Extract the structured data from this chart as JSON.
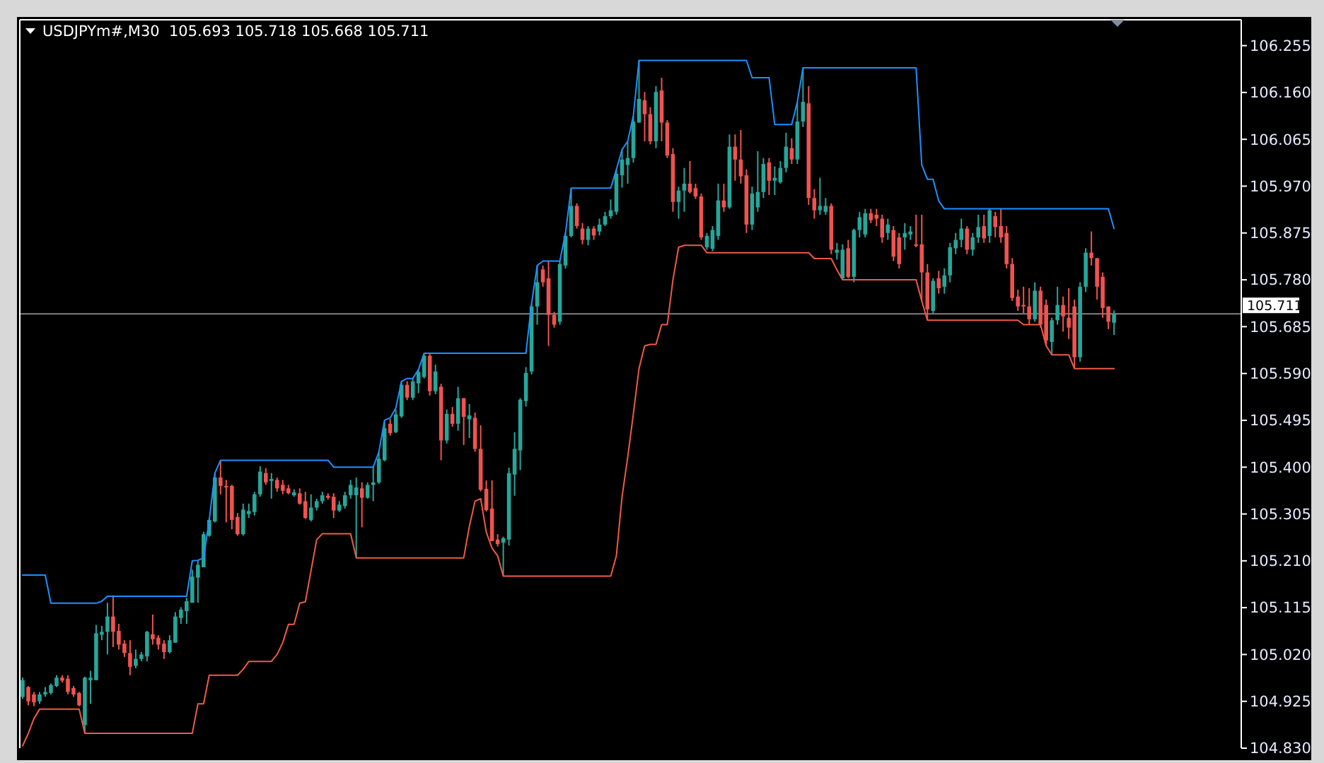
{
  "chart_data": {
    "type": "candlestick",
    "title": "USDJPYm#,M30  105.693 105.718 105.668 105.711",
    "categories": [
      null,
      null,
      null,
      null,
      null,
      null,
      null,
      null,
      null,
      null,
      null,
      null,
      null,
      null,
      null,
      null,
      null,
      null,
      null,
      null,
      null,
      null,
      null,
      null,
      null,
      null,
      null,
      null,
      null,
      null,
      null,
      null,
      null,
      null,
      null,
      null,
      null,
      null,
      null,
      null,
      null,
      null,
      null,
      null,
      null,
      null,
      null,
      null,
      null,
      null,
      null,
      null,
      null,
      null,
      null,
      null,
      null,
      null,
      null,
      null,
      null,
      null,
      null,
      null,
      null,
      null,
      null,
      null,
      null,
      null,
      null,
      null,
      null,
      null,
      null,
      null,
      null,
      null,
      null,
      null,
      null,
      null,
      null,
      null,
      null,
      null,
      null,
      null,
      null,
      null,
      null,
      null,
      null,
      null,
      null,
      null,
      null,
      null,
      null,
      null,
      null,
      null,
      null,
      null,
      null,
      null,
      null,
      null,
      null,
      null,
      null,
      null,
      null,
      null,
      null,
      null,
      null,
      null,
      null,
      null,
      null,
      null,
      null,
      null,
      null,
      null,
      null,
      null,
      null,
      null,
      null,
      null,
      null,
      null,
      null,
      null,
      null,
      null,
      null,
      null,
      null,
      null,
      null,
      null,
      null,
      null,
      null,
      null,
      null,
      null,
      null,
      null,
      null,
      null,
      null,
      null,
      null,
      null,
      null,
      null,
      null,
      null,
      null,
      null,
      null,
      null,
      null,
      null,
      null,
      null,
      null,
      null,
      null,
      null,
      null,
      null,
      null,
      null,
      null,
      null,
      null,
      null,
      null,
      null,
      null,
      null,
      null,
      null,
      null,
      null,
      null,
      null,
      null,
      null,
      null,
      null,
      null,
      null,
      null,
      null,
      null,
      null,
      null,
      null,
      null,
      null,
      null,
      null,
      null,
      null,
      null,
      null,
      null,
      null,
      null,
      null
    ],
    "ylim": [
      104.83,
      106.305
    ],
    "yticks": [
      106.255,
      {
        "value": 106.16,
        "label": "106.160"
      },
      106.065,
      {
        "value": 105.97,
        "label": "105.970"
      },
      105.875,
      {
        "value": 105.78,
        "label": "105.780"
      },
      105.685,
      {
        "value": 105.59,
        "label": "105.590"
      },
      105.495,
      {
        "value": 105.4,
        "label": "105.400"
      },
      105.305,
      {
        "value": 105.21,
        "label": "105.210"
      },
      105.115,
      {
        "value": 105.02,
        "label": "105.020"
      },
      104.925,
      {
        "value": 104.83,
        "label": "104.830"
      }
    ],
    "tick_labels": "y",
    "ref_lines": [
      {
        "axis": "y",
        "value": 105.711,
        "label": "105.711",
        "color": "#808080"
      }
    ],
    "series": [
      {
        "ohlc": [
          [
            104.934,
            104.973,
            104.93,
            104.968
          ],
          [
            104.954,
            104.956,
            104.917,
            104.925
          ],
          [
            104.939,
            104.944,
            104.915,
            104.923
          ],
          [
            104.925,
            104.944,
            104.92,
            104.939
          ],
          [
            104.939,
            104.954,
            104.934,
            104.944
          ],
          [
            104.942,
            104.961,
            104.939,
            104.958
          ],
          [
            104.956,
            104.978,
            104.954,
            104.973
          ],
          [
            104.973,
            104.978,
            104.963,
            104.967
          ],
          [
            104.971,
            104.978,
            104.939,
            104.944
          ],
          [
            104.952,
            104.956,
            104.934,
            104.939
          ],
          [
            104.942,
            104.944,
            104.915,
            104.917
          ],
          [
            104.877,
            104.975,
            104.86,
            104.973
          ],
          [
            104.968,
            104.987,
            104.92,
            104.973
          ],
          [
            104.968,
            105.08,
            104.968,
            105.063
          ],
          [
            105.06,
            105.078,
            105.049,
            105.066
          ],
          [
            105.066,
            105.125,
            105.02,
            105.097
          ],
          [
            105.097,
            105.14,
            105.035,
            105.066
          ],
          [
            105.068,
            105.082,
            105.03,
            105.04
          ],
          [
            105.042,
            105.049,
            105.015,
            105.023
          ],
          [
            105.023,
            105.049,
            104.978,
            104.995
          ],
          [
            104.997,
            105.03,
            104.992,
            105.011
          ],
          [
            105.011,
            105.025,
            105.006,
            105.02
          ],
          [
            105.016,
            105.068,
            105.006,
            105.066
          ],
          [
            105.061,
            105.101,
            105.04,
            105.051
          ],
          [
            105.054,
            105.059,
            105.03,
            105.04
          ],
          [
            105.042,
            105.049,
            105.011,
            105.025
          ],
          [
            105.025,
            105.059,
            105.022,
            105.049
          ],
          [
            105.044,
            105.106,
            105.044,
            105.097
          ],
          [
            105.094,
            105.116,
            105.082,
            105.111
          ],
          [
            105.108,
            105.135,
            105.082,
            105.128
          ],
          [
            105.125,
            105.192,
            105.125,
            105.178
          ],
          [
            105.176,
            105.211,
            105.125,
            105.202
          ],
          [
            105.197,
            105.269,
            105.197,
            105.264
          ],
          [
            105.261,
            105.297,
            105.259,
            105.293
          ],
          [
            105.29,
            105.388,
            105.288,
            105.379
          ],
          [
            105.379,
            105.414,
            105.345,
            105.362
          ],
          [
            105.362,
            105.374,
            105.288,
            105.359
          ],
          [
            105.362,
            105.364,
            105.274,
            105.293
          ],
          [
            105.299,
            105.307,
            105.261,
            105.264
          ],
          [
            105.264,
            105.326,
            105.261,
            105.314
          ],
          [
            105.305,
            105.326,
            105.297,
            105.311
          ],
          [
            105.309,
            105.35,
            105.302,
            105.345
          ],
          [
            105.345,
            105.402,
            105.34,
            105.391
          ],
          [
            105.388,
            105.398,
            105.364,
            105.369
          ],
          [
            105.372,
            105.388,
            105.336,
            105.376
          ],
          [
            105.374,
            105.379,
            105.35,
            105.357
          ],
          [
            105.364,
            105.374,
            105.345,
            105.352
          ],
          [
            105.357,
            105.364,
            105.345,
            105.347
          ],
          [
            105.343,
            105.355,
            105.34,
            105.349
          ],
          [
            105.347,
            105.357,
            105.324,
            105.326
          ],
          [
            105.331,
            105.35,
            105.295,
            105.297
          ],
          [
            105.293,
            105.345,
            105.29,
            105.318
          ],
          [
            105.318,
            105.336,
            105.312,
            105.331
          ],
          [
            105.331,
            105.35,
            105.326,
            105.343
          ],
          [
            105.342,
            105.347,
            105.334,
            105.338
          ],
          [
            105.34,
            105.347,
            105.297,
            105.312
          ],
          [
            105.312,
            105.331,
            105.309,
            105.324
          ],
          [
            105.321,
            105.35,
            105.316,
            105.343
          ],
          [
            105.343,
            105.374,
            105.336,
            105.364
          ],
          [
            105.343,
            105.379,
            105.216,
            105.359
          ],
          [
            105.357,
            105.369,
            105.278,
            105.338
          ],
          [
            105.338,
            105.369,
            105.336,
            105.364
          ],
          [
            105.364,
            105.402,
            105.331,
            105.369
          ],
          [
            105.369,
            105.431,
            105.366,
            105.417
          ],
          [
            105.414,
            105.493,
            105.412,
            105.479
          ],
          [
            105.488,
            105.498,
            105.464,
            105.469
          ],
          [
            105.471,
            105.517,
            105.469,
            105.507
          ],
          [
            105.503,
            105.574,
            105.5,
            105.567
          ],
          [
            105.567,
            105.574,
            105.536,
            105.541
          ],
          [
            105.541,
            105.579,
            105.536,
            105.574
          ],
          [
            105.57,
            105.598,
            105.55,
            105.593
          ],
          [
            105.583,
            105.631,
            105.58,
            105.626
          ],
          [
            105.626,
            105.631,
            105.545,
            105.554
          ],
          [
            105.554,
            105.608,
            105.548,
            105.594
          ],
          [
            105.563,
            105.569,
            105.414,
            105.454
          ],
          [
            105.454,
            105.517,
            105.448,
            105.508
          ],
          [
            105.508,
            105.522,
            105.482,
            105.488
          ],
          [
            105.488,
            105.563,
            105.474,
            105.54
          ],
          [
            105.54,
            105.54,
            105.445,
            105.502
          ],
          [
            105.497,
            105.528,
            105.459,
            105.505
          ],
          [
            105.5,
            105.511,
            105.431,
            105.437
          ],
          [
            105.437,
            105.485,
            105.351,
            105.354
          ],
          [
            105.356,
            105.373,
            105.31,
            105.313
          ],
          [
            105.316,
            105.373,
            105.25,
            105.25
          ],
          [
            105.253,
            105.264,
            105.239,
            105.244
          ],
          [
            105.247,
            105.259,
            105.179,
            105.256
          ],
          [
            105.253,
            105.399,
            105.241,
            105.388
          ],
          [
            105.385,
            105.471,
            105.342,
            105.437
          ],
          [
            105.434,
            105.54,
            105.394,
            105.537
          ],
          [
            105.534,
            105.603,
            105.523,
            105.591
          ],
          [
            105.594,
            105.732,
            105.588,
            105.726
          ],
          [
            105.726,
            105.809,
            105.689,
            105.775
          ],
          [
            105.801,
            105.809,
            105.766,
            105.775
          ],
          [
            105.783,
            105.818,
            105.646,
            105.709
          ],
          [
            105.709,
            105.715,
            105.683,
            105.689
          ],
          [
            105.695,
            105.818,
            105.689,
            105.812
          ],
          [
            105.809,
            105.875,
            105.803,
            105.869
          ],
          [
            105.869,
            105.966,
            105.866,
            105.93
          ],
          [
            105.93,
            105.935,
            105.884,
            105.889
          ],
          [
            105.884,
            105.895,
            105.852,
            105.861
          ],
          [
            105.861,
            105.889,
            105.85,
            105.884
          ],
          [
            105.884,
            105.889,
            105.861,
            105.87
          ],
          [
            105.878,
            105.904,
            105.87,
            105.892
          ],
          [
            105.892,
            105.918,
            105.889,
            105.909
          ],
          [
            105.909,
            105.943,
            105.904,
            105.921
          ],
          [
            105.918,
            106.004,
            105.912,
            105.995
          ],
          [
            105.992,
            106.044,
            105.967,
            106.024
          ],
          [
            106.013,
            106.061,
            105.975,
            106.027
          ],
          [
            106.027,
            106.113,
            106.018,
            106.101
          ],
          [
            106.099,
            106.225,
            106.099,
            106.147
          ],
          [
            106.144,
            106.161,
            106.061,
            106.116
          ],
          [
            106.116,
            106.13,
            106.055,
            106.061
          ],
          [
            106.061,
            106.173,
            106.047,
            106.161
          ],
          [
            106.164,
            106.19,
            106.061,
            106.099
          ],
          [
            106.099,
            106.104,
            106.027,
            106.032
          ],
          [
            106.035,
            106.047,
            105.918,
            105.938
          ],
          [
            105.938,
            105.969,
            105.904,
            105.961
          ],
          [
            105.961,
            106.007,
            105.918,
            105.975
          ],
          [
            105.975,
            106.021,
            105.955,
            105.958
          ],
          [
            105.966,
            105.975,
            105.944,
            105.949
          ],
          [
            105.949,
            105.955,
            105.861,
            105.866
          ],
          [
            105.846,
            105.875,
            105.841,
            105.869
          ],
          [
            105.843,
            105.889,
            105.838,
            105.881
          ],
          [
            105.869,
            105.975,
            105.861,
            105.941
          ],
          [
            105.941,
            105.975,
            105.918,
            105.927
          ],
          [
            105.927,
            106.075,
            105.924,
            106.05
          ],
          [
            106.05,
            106.075,
            105.981,
            106.024
          ],
          [
            106.024,
            106.084,
            105.975,
            105.99
          ],
          [
            105.992,
            106.004,
            105.875,
            105.892
          ],
          [
            105.892,
            105.969,
            105.881,
            105.955
          ],
          [
            105.927,
            106.041,
            105.918,
            105.958
          ],
          [
            105.958,
            106.027,
            105.946,
            106.015
          ],
          [
            106.018,
            106.027,
            105.952,
            105.981
          ],
          [
            105.981,
            106.01,
            105.952,
            105.987
          ],
          [
            105.978,
            106.021,
            105.975,
            106.007
          ],
          [
            106.007,
            106.078,
            105.998,
            106.05
          ],
          [
            106.047,
            106.067,
            106.015,
            106.024
          ],
          [
            106.024,
            106.141,
            106.015,
            106.101
          ],
          [
            106.101,
            106.21,
            106.09,
            106.141
          ],
          [
            106.138,
            106.173,
            105.932,
            105.946
          ],
          [
            105.946,
            105.964,
            105.904,
            105.921
          ],
          [
            105.921,
            105.987,
            105.912,
            105.93
          ],
          [
            105.918,
            105.946,
            105.912,
            105.93
          ],
          [
            105.93,
            105.935,
            105.832,
            105.841
          ],
          [
            105.835,
            105.855,
            105.821,
            105.841
          ],
          [
            105.783,
            105.852,
            105.78,
            105.841
          ],
          [
            105.844,
            105.861,
            105.783,
            105.786
          ],
          [
            105.786,
            105.884,
            105.775,
            105.881
          ],
          [
            105.881,
            105.918,
            105.866,
            105.907
          ],
          [
            105.872,
            105.924,
            105.866,
            105.915
          ],
          [
            105.915,
            105.924,
            105.895,
            105.901
          ],
          [
            105.912,
            105.924,
            105.889,
            105.904
          ],
          [
            105.904,
            105.912,
            105.855,
            105.866
          ],
          [
            105.875,
            105.904,
            105.861,
            105.892
          ],
          [
            105.881,
            105.889,
            105.818,
            105.827
          ],
          [
            105.866,
            105.875,
            105.803,
            105.812
          ],
          [
            105.866,
            105.895,
            105.841,
            105.875
          ],
          [
            105.872,
            105.889,
            105.861,
            105.878
          ],
          [
            105.852,
            105.912,
            105.846,
            105.849
          ],
          [
            105.852,
            105.912,
            105.737,
            105.795
          ],
          [
            105.795,
            105.812,
            105.698,
            105.72
          ],
          [
            105.717,
            105.783,
            105.712,
            105.778
          ],
          [
            105.783,
            105.798,
            105.752,
            105.763
          ],
          [
            105.766,
            105.803,
            105.752,
            105.789
          ],
          [
            105.789,
            105.855,
            105.775,
            105.846
          ],
          [
            105.844,
            105.875,
            105.832,
            105.861
          ],
          [
            105.861,
            105.904,
            105.846,
            105.884
          ],
          [
            105.884,
            105.889,
            105.832,
            105.841
          ],
          [
            105.841,
            105.875,
            105.829,
            105.866
          ],
          [
            105.866,
            105.912,
            105.855,
            105.887
          ],
          [
            105.889,
            105.912,
            105.855,
            105.864
          ],
          [
            105.869,
            105.924,
            105.855,
            105.921
          ],
          [
            105.909,
            105.918,
            105.866,
            105.887
          ],
          [
            105.889,
            105.924,
            105.855,
            105.866
          ],
          [
            105.875,
            105.889,
            105.803,
            105.812
          ],
          [
            105.812,
            105.824,
            105.737,
            105.743
          ],
          [
            105.746,
            105.76,
            105.717,
            105.726
          ],
          [
            105.729,
            105.766,
            105.712,
            105.726
          ],
          [
            105.726,
            105.763,
            105.689,
            105.7
          ],
          [
            105.7,
            105.775,
            105.695,
            105.758
          ],
          [
            105.758,
            105.766,
            105.683,
            105.689
          ],
          [
            105.729,
            105.74,
            105.646,
            105.657
          ],
          [
            105.654,
            105.703,
            105.628,
            105.698
          ],
          [
            105.698,
            105.766,
            105.689,
            105.729
          ],
          [
            105.729,
            105.746,
            105.675,
            105.706
          ],
          [
            105.703,
            105.763,
            105.66,
            105.683
          ],
          [
            105.726,
            105.74,
            105.6,
            105.623
          ],
          [
            105.623,
            105.775,
            105.614,
            105.766
          ],
          [
            105.766,
            105.844,
            105.755,
            105.835
          ],
          [
            105.835,
            105.878,
            105.809,
            105.824
          ],
          [
            105.824,
            105.824,
            105.74,
            105.766
          ],
          [
            105.786,
            105.795,
            105.703,
            105.723
          ],
          [
            105.726,
            105.726,
            105.68,
            105.695
          ],
          [
            105.693,
            105.718,
            105.668,
            105.711
          ],
          null,
          null,
          null,
          null,
          null,
          null,
          null,
          null,
          null,
          null,
          null,
          null,
          null,
          null,
          null,
          null,
          null,
          null,
          null,
          null,
          null,
          null
        ],
        "colors": [
          "#26a69a",
          "#ef5350",
          "#ef5350",
          "#26a69a",
          "#26a69a",
          "#26a69a",
          "#26a69a",
          "#ef5350",
          "#ef5350",
          "#ef5350",
          "#ef5350",
          "#26a69a",
          "#26a69a",
          "#26a69a",
          "#26a69a",
          "#26a69a",
          "#ef5350",
          "#ef5350",
          "#ef5350",
          "#ef5350",
          "#26a69a",
          "#26a69a",
          "#26a69a",
          "#ef5350",
          "#ef5350",
          "#ef5350",
          "#26a69a",
          "#26a69a",
          "#26a69a",
          "#26a69a",
          "#26a69a",
          "#26a69a",
          "#26a69a",
          "#26a69a",
          "#26a69a",
          "#ef5350",
          "#ef5350",
          "#ef5350",
          "#ef5350",
          "#26a69a",
          "#26a69a",
          "#26a69a",
          "#26a69a",
          "#ef5350",
          "#26a69a",
          "#ef5350",
          "#ef5350",
          "#ef5350",
          "#26a69a",
          "#ef5350",
          "#ef5350",
          "#26a69a",
          "#26a69a",
          "#26a69a",
          "#ef5350",
          "#ef5350",
          "#26a69a",
          "#26a69a",
          "#26a69a",
          "#26a69a",
          "#ef5350",
          "#26a69a",
          "#26a69a",
          "#26a69a",
          "#26a69a",
          "#ef5350",
          "#26a69a",
          "#26a69a",
          "#ef5350",
          "#26a69a",
          "#26a69a",
          "#26a69a",
          "#ef5350",
          "#26a69a",
          "#ef5350",
          "#26a69a",
          "#ef5350",
          "#26a69a",
          "#ef5350",
          "#26a69a",
          "#ef5350",
          "#ef5350",
          "#ef5350",
          "#ef5350",
          "#ef5350",
          "#26a69a",
          "#26a69a",
          "#26a69a",
          "#26a69a",
          "#26a69a",
          "#26a69a",
          "#26a69a",
          "#ef5350",
          "#ef5350",
          "#ef5350",
          "#26a69a",
          "#26a69a",
          "#26a69a",
          "#ef5350",
          "#ef5350",
          "#26a69a",
          "#ef5350",
          "#26a69a",
          "#26a69a",
          "#26a69a",
          "#26a69a",
          "#26a69a",
          "#26a69a",
          "#26a69a",
          "#26a69a",
          "#ef5350",
          "#ef5350",
          "#26a69a",
          "#ef5350",
          "#ef5350",
          "#ef5350",
          "#26a69a",
          "#26a69a",
          "#ef5350",
          "#ef5350",
          "#ef5350",
          "#26a69a",
          "#26a69a",
          "#26a69a",
          "#ef5350",
          "#26a69a",
          "#ef5350",
          "#ef5350",
          "#ef5350",
          "#26a69a",
          "#26a69a",
          "#26a69a",
          "#ef5350",
          "#26a69a",
          "#26a69a",
          "#26a69a",
          "#ef5350",
          "#26a69a",
          "#26a69a",
          "#ef5350",
          "#ef5350",
          "#26a69a",
          "#26a69a",
          "#ef5350",
          "#26a69a",
          "#26a69a",
          "#ef5350",
          "#26a69a",
          "#26a69a",
          "#26a69a",
          "#ef5350",
          "#ef5350",
          "#ef5350",
          "#26a69a",
          "#ef5350",
          "#ef5350",
          "#26a69a",
          "#26a69a",
          "#ef5350",
          "#ef5350",
          "#ef5350",
          "#26a69a",
          "#ef5350",
          "#26a69a",
          "#26a69a",
          "#26a69a",
          "#26a69a",
          "#ef5350",
          "#26a69a",
          "#26a69a",
          "#ef5350",
          "#26a69a",
          "#ef5350",
          "#ef5350",
          "#ef5350",
          "#ef5350",
          "#ef5350",
          "#ef5350",
          "#ef5350",
          "#26a69a",
          "#ef5350",
          "#ef5350",
          "#26a69a",
          "#26a69a",
          "#ef5350",
          "#ef5350",
          "#ef5350",
          "#26a69a",
          "#26a69a",
          "#ef5350",
          "#ef5350",
          "#ef5350",
          "#ef5350",
          "#26a69a",
          null,
          null,
          null,
          null,
          null,
          null,
          null,
          null,
          null,
          null,
          null,
          null,
          null,
          null,
          null,
          null,
          null,
          null,
          null,
          null,
          null,
          null
        ]
      },
      {
        "type": "line",
        "color": "#1e90ff",
        "values": [
          105.181,
          105.181,
          105.181,
          105.181,
          105.181,
          105.124,
          105.124,
          105.124,
          105.124,
          105.124,
          105.124,
          105.124,
          105.124,
          105.124,
          105.128,
          105.138,
          105.138,
          105.138,
          105.138,
          105.138,
          105.138,
          105.138,
          105.138,
          105.138,
          105.138,
          105.138,
          105.138,
          105.138,
          105.138,
          105.138,
          105.21,
          105.211,
          105.216,
          105.293,
          105.388,
          105.414,
          105.414,
          105.414,
          105.414,
          105.414,
          105.414,
          105.414,
          105.414,
          105.414,
          105.414,
          105.414,
          105.414,
          105.414,
          105.414,
          105.414,
          105.414,
          105.414,
          105.414,
          105.414,
          105.414,
          105.4,
          105.4,
          105.4,
          105.4,
          105.4,
          105.4,
          105.4,
          105.4,
          105.431,
          105.495,
          105.5,
          105.52,
          105.574,
          105.58,
          105.58,
          105.598,
          105.631,
          105.631,
          105.631,
          105.631,
          105.631,
          105.631,
          105.631,
          105.631,
          105.631,
          105.631,
          105.631,
          105.631,
          105.631,
          105.631,
          105.631,
          105.631,
          105.631,
          105.631,
          105.631,
          105.732,
          105.809,
          105.818,
          105.818,
          105.818,
          105.818,
          105.875,
          105.966,
          105.966,
          105.966,
          105.966,
          105.966,
          105.966,
          105.966,
          105.966,
          106.004,
          106.044,
          106.061,
          106.113,
          106.225,
          106.225,
          106.225,
          106.225,
          106.225,
          106.225,
          106.225,
          106.225,
          106.225,
          106.225,
          106.225,
          106.225,
          106.225,
          106.225,
          106.225,
          106.225,
          106.225,
          106.225,
          106.225,
          106.225,
          106.19,
          106.19,
          106.19,
          106.19,
          106.095,
          106.095,
          106.095,
          106.095,
          106.141,
          106.21,
          106.21,
          106.21,
          106.21,
          106.21,
          106.21,
          106.21,
          106.21,
          106.21,
          106.21,
          106.21,
          106.21,
          106.21,
          106.21,
          106.21,
          106.21,
          106.21,
          106.21,
          106.21,
          106.21,
          106.21,
          106.013,
          105.984,
          105.984,
          105.94,
          105.924,
          105.924,
          105.924,
          105.924,
          105.924,
          105.924,
          105.924,
          105.924,
          105.924,
          105.924,
          105.924,
          105.924,
          105.924,
          105.924,
          105.924,
          105.924,
          105.924,
          105.924,
          105.924,
          105.924,
          105.924,
          105.924,
          105.924,
          105.924,
          105.924,
          105.924,
          105.924,
          105.924,
          105.924,
          105.924,
          105.884,
          null,
          null,
          null,
          null,
          null,
          null,
          null,
          null,
          null,
          null,
          null,
          null,
          null,
          null,
          null,
          null,
          null,
          null,
          null,
          null,
          null,
          null
        ]
      },
      {
        "type": "line",
        "color": "#f05a46",
        "values": [
          104.835,
          104.86,
          104.89,
          104.909,
          104.909,
          104.909,
          104.909,
          104.909,
          104.909,
          104.909,
          104.909,
          104.86,
          104.86,
          104.86,
          104.86,
          104.86,
          104.86,
          104.86,
          104.86,
          104.86,
          104.86,
          104.86,
          104.86,
          104.86,
          104.86,
          104.86,
          104.86,
          104.86,
          104.86,
          104.86,
          104.86,
          104.92,
          104.92,
          104.978,
          104.978,
          104.978,
          104.978,
          104.978,
          104.978,
          104.99,
          105.006,
          105.006,
          105.006,
          105.006,
          105.006,
          105.02,
          105.044,
          105.081,
          105.081,
          105.124,
          105.127,
          105.19,
          105.253,
          105.265,
          105.265,
          105.265,
          105.265,
          105.265,
          105.265,
          105.216,
          105.216,
          105.216,
          105.216,
          105.216,
          105.216,
          105.216,
          105.216,
          105.216,
          105.216,
          105.216,
          105.216,
          105.216,
          105.216,
          105.216,
          105.216,
          105.216,
          105.216,
          105.216,
          105.216,
          105.28,
          105.331,
          105.336,
          105.268,
          105.236,
          105.22,
          105.179,
          105.179,
          105.179,
          105.179,
          105.179,
          105.179,
          105.179,
          105.179,
          105.179,
          105.179,
          105.179,
          105.179,
          105.179,
          105.179,
          105.179,
          105.179,
          105.179,
          105.179,
          105.179,
          105.179,
          105.22,
          105.34,
          105.42,
          105.508,
          105.6,
          105.646,
          105.649,
          105.649,
          105.689,
          105.689,
          105.78,
          105.846,
          105.85,
          105.85,
          105.85,
          105.85,
          105.835,
          105.835,
          105.835,
          105.835,
          105.835,
          105.835,
          105.835,
          105.835,
          105.835,
          105.835,
          105.835,
          105.835,
          105.835,
          105.835,
          105.835,
          105.835,
          105.835,
          105.835,
          105.835,
          105.823,
          105.823,
          105.823,
          105.823,
          105.8,
          105.78,
          105.78,
          105.78,
          105.78,
          105.78,
          105.78,
          105.78,
          105.78,
          105.78,
          105.78,
          105.78,
          105.78,
          105.78,
          105.78,
          105.737,
          105.698,
          105.698,
          105.698,
          105.698,
          105.698,
          105.698,
          105.698,
          105.698,
          105.698,
          105.698,
          105.698,
          105.698,
          105.698,
          105.698,
          105.698,
          105.698,
          105.698,
          105.689,
          105.689,
          105.689,
          105.689,
          105.646,
          105.628,
          105.628,
          105.628,
          105.628,
          105.6,
          105.6,
          105.6,
          105.6,
          105.6,
          105.6,
          105.6,
          105.6,
          null,
          null,
          null,
          null,
          null,
          null,
          null,
          null,
          null,
          null,
          null,
          null,
          null,
          null,
          null,
          null,
          null,
          null,
          null,
          null,
          null,
          null
        ]
      }
    ]
  }
}
